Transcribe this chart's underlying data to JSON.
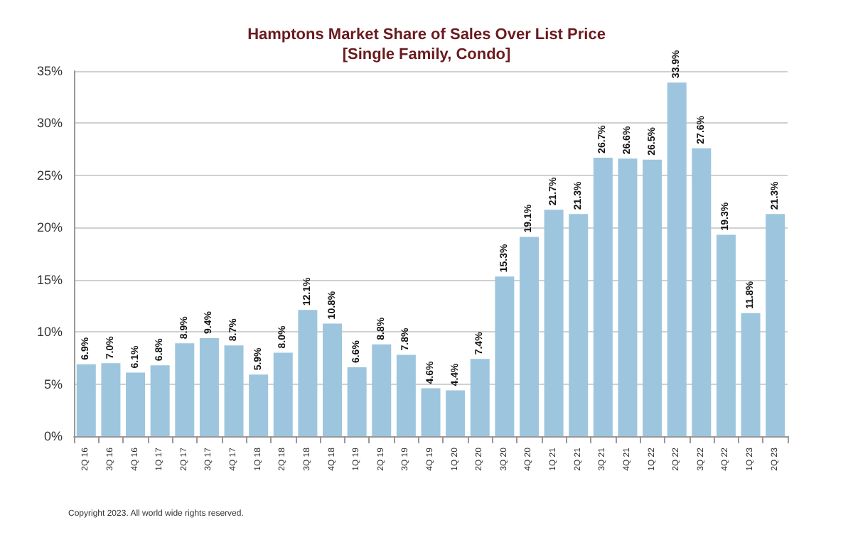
{
  "chart_data": {
    "type": "bar",
    "title": "Hamptons Market Share of Sales Over List Price",
    "subtitle": "[Single Family, Condo]",
    "categories": [
      "2Q 16",
      "3Q 16",
      "4Q 16",
      "1Q 17",
      "2Q 17",
      "3Q 17",
      "4Q 17",
      "1Q 18",
      "2Q 18",
      "3Q 18",
      "4Q 18",
      "1Q 19",
      "2Q 19",
      "3Q 19",
      "4Q 19",
      "1Q 20",
      "2Q 20",
      "3Q 20",
      "4Q 20",
      "1Q 21",
      "2Q 21",
      "3Q 21",
      "4Q 21",
      "1Q 22",
      "2Q 22",
      "3Q 22",
      "4Q 22",
      "1Q 23",
      "2Q 23"
    ],
    "values": [
      6.9,
      7.0,
      6.1,
      6.8,
      8.9,
      9.4,
      8.7,
      5.9,
      8.0,
      12.1,
      10.8,
      6.6,
      8.8,
      7.8,
      4.6,
      4.4,
      7.4,
      15.3,
      19.1,
      21.7,
      21.3,
      26.7,
      26.6,
      26.5,
      33.9,
      27.6,
      19.3,
      11.8,
      21.3
    ],
    "value_labels": [
      "6.9%",
      "7.0%",
      "6.1%",
      "6.8%",
      "8.9%",
      "9.4%",
      "8.7%",
      "5.9%",
      "8.0%",
      "12.1%",
      "10.8%",
      "6.6%",
      "8.8%",
      "7.8%",
      "4.6%",
      "4.4%",
      "7.4%",
      "15.3%",
      "19.1%",
      "21.7%",
      "21.3%",
      "26.7%",
      "26.6%",
      "26.5%",
      "33.9%",
      "27.6%",
      "19.3%",
      "11.8%",
      "21.3%"
    ],
    "color": "#9dc6de",
    "ylim": [
      0,
      35
    ],
    "yticks": [
      {
        "value": 0,
        "label": "0%"
      },
      {
        "value": 5,
        "label": "5%"
      },
      {
        "value": 10,
        "label": "10%"
      },
      {
        "value": 15,
        "label": "15%"
      },
      {
        "value": 20,
        "label": "20%"
      },
      {
        "value": 25,
        "label": "25%"
      },
      {
        "value": 30,
        "label": "30%"
      },
      {
        "value": 35,
        "label": "35%"
      }
    ],
    "grid": "y",
    "annotations": [
      "Copyright 2023. All world wide rights reserved."
    ]
  }
}
